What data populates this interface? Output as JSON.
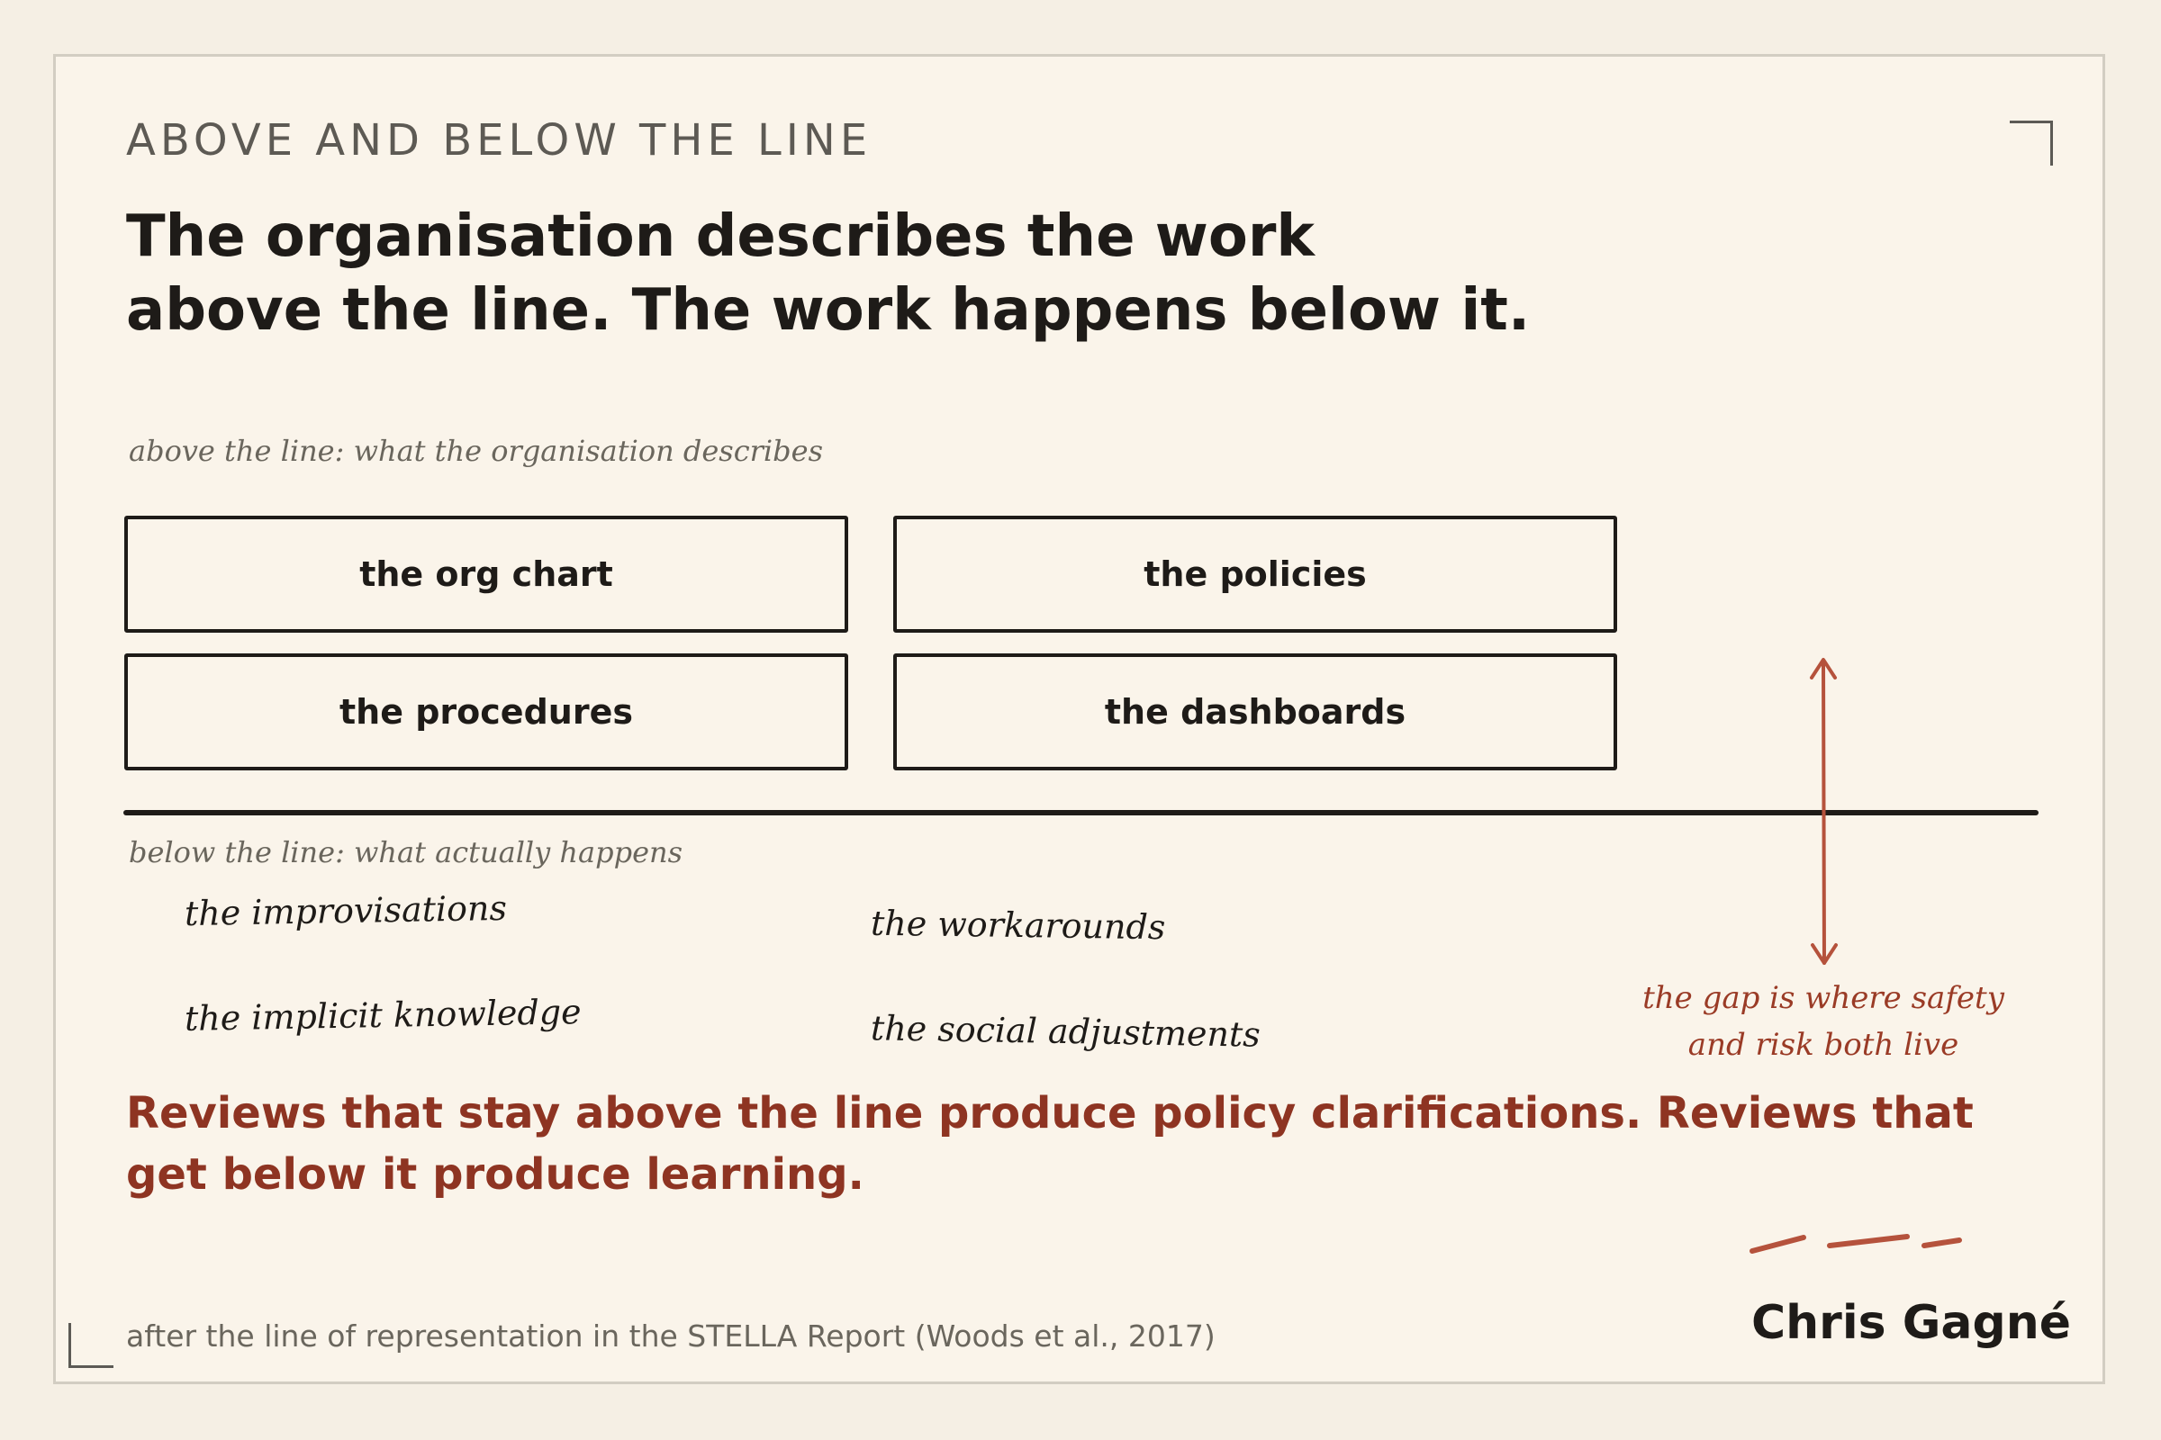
{
  "eyebrow": "ABOVE AND BELOW THE LINE",
  "headline": {
    "line1": "The organisation describes the work",
    "line2": "above the line. The work happens below it."
  },
  "above": {
    "label": "above the line: what the organisation describes",
    "boxes": [
      "the org chart",
      "the policies",
      "the procedures",
      "the dashboards"
    ]
  },
  "below": {
    "label": "below the line: what actually happens",
    "items": [
      "the improvisations",
      "the workarounds",
      "the implicit knowledge",
      "the social adjustments"
    ]
  },
  "gap_note": {
    "line1": "the gap is where safety",
    "line2": "and risk both live"
  },
  "takeaway": "Reviews that stay above the line produce policy clarifications. Reviews that get below it produce learning.",
  "footnote": "after the line of representation in the STELLA Report (Woods et al., 2017)",
  "author": "Chris Gagné",
  "colors": {
    "background": "#faf4ea",
    "ink": "#1e1b18",
    "accent": "#9a3b26",
    "muted": "#6a665d"
  }
}
